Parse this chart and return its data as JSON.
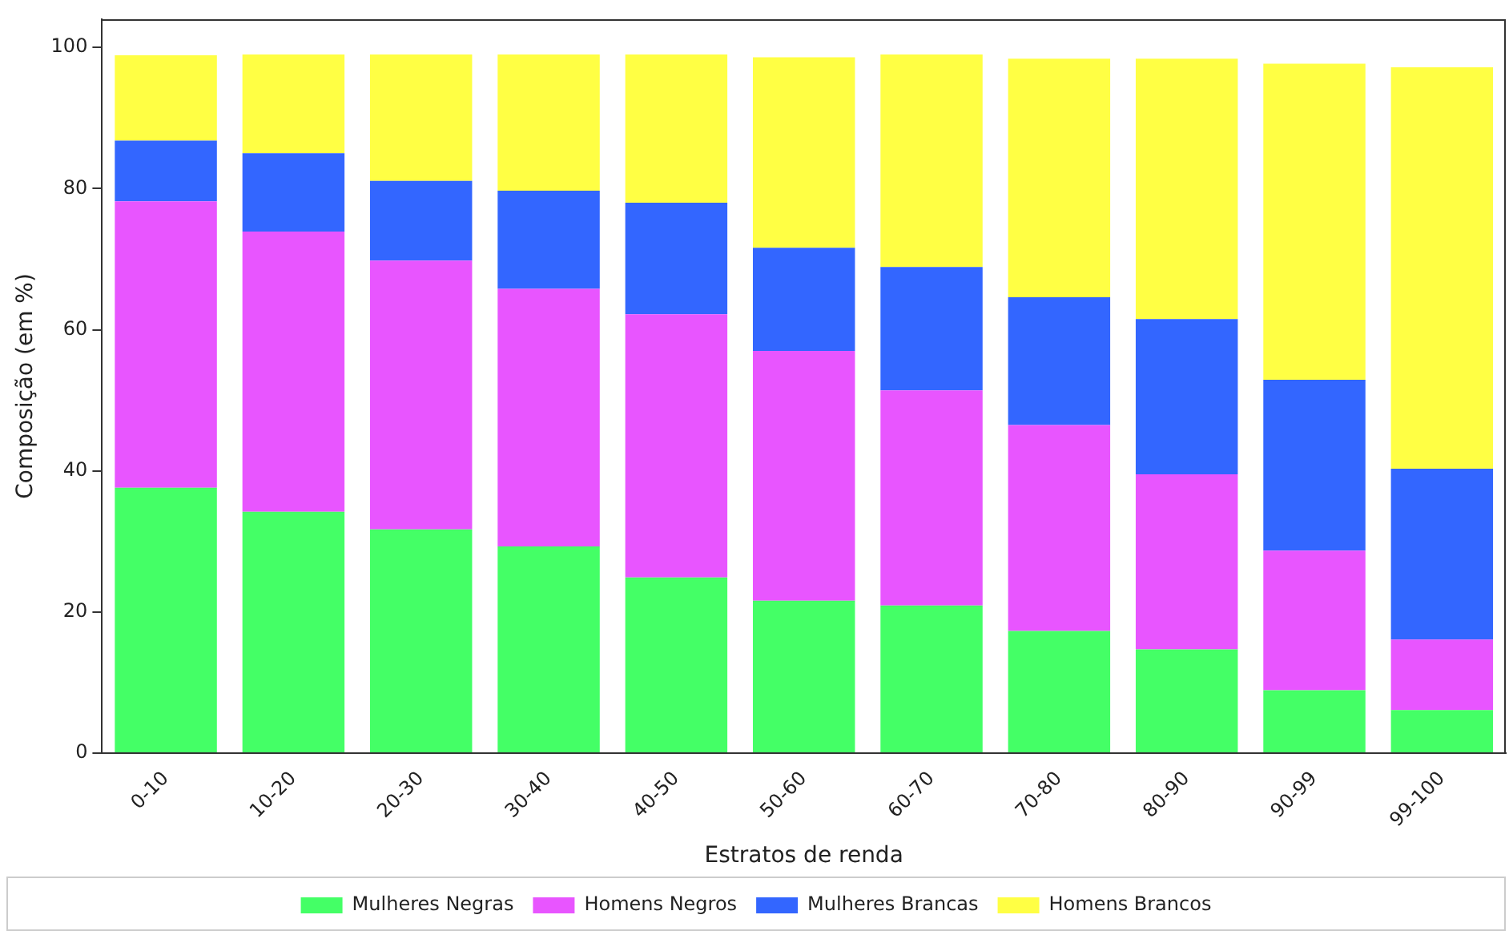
{
  "chart_data": {
    "type": "bar",
    "stacked": true,
    "xlabel": "Estratos de renda",
    "ylabel": "Composição (em %)",
    "categories": [
      "0-10",
      "10-20",
      "20-30",
      "30-40",
      "40-50",
      "50-60",
      "60-70",
      "70-80",
      "80-90",
      "90-99",
      "99-100"
    ],
    "series": [
      {
        "name": "Mulheres Negras",
        "color": "#44ff66",
        "values": [
          37.6,
          34.2,
          31.7,
          29.3,
          24.9,
          21.6,
          20.9,
          17.3,
          14.7,
          8.9,
          6.1
        ]
      },
      {
        "name": "Homens Negros",
        "color": "#e855ff",
        "values": [
          40.6,
          39.7,
          38.1,
          36.5,
          37.3,
          35.4,
          30.5,
          29.2,
          24.8,
          19.8,
          10.0
        ]
      },
      {
        "name": "Mulheres Brancas",
        "color": "#3366ff",
        "values": [
          8.6,
          11.1,
          11.3,
          13.9,
          15.8,
          14.6,
          17.5,
          18.1,
          22.0,
          24.2,
          24.2
        ]
      },
      {
        "name": "Homens Brancos",
        "color": "#ffff44",
        "values": [
          12.1,
          14.0,
          17.9,
          19.3,
          21.0,
          27.0,
          30.1,
          33.8,
          36.9,
          44.8,
          56.9
        ]
      }
    ],
    "ylim": [
      0,
      104
    ],
    "yticks": [
      0,
      20,
      40,
      60,
      80,
      100
    ],
    "grid": false,
    "legend": "bottom"
  }
}
